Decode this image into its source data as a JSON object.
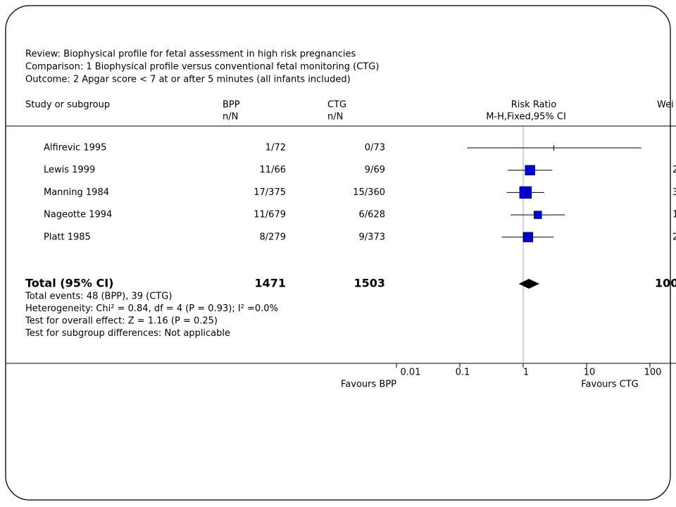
{
  "chart_data": {
    "type": "forest",
    "review": "Review:  Biophysical profile for fetal assessment in high risk pregnancies",
    "comparison": "Comparison:  1 Biophysical profile versus conventional fetal monitoring (CTG)",
    "outcome": "Outcome:  2 Apgar score < 7 at or after 5 minutes (all infants included)",
    "headers": {
      "study": "Study or subgroup",
      "bpp": "BPP",
      "bpp_sub": "n/N",
      "ctg": "CTG",
      "ctg_sub": "n/N",
      "rr": "Risk Ratio",
      "rr_sub": "M-H,Fixed,95% CI",
      "weight": "Wei"
    },
    "studies": [
      {
        "name": "Alfirevic 1995",
        "bpp": "1/72",
        "ctg": "0/73",
        "rr": 3.04,
        "lo": 0.13,
        "hi": 73,
        "weight": null
      },
      {
        "name": "Lewis 1999",
        "bpp": "11/66",
        "ctg": "9/69",
        "rr": 1.28,
        "lo": 0.57,
        "hi": 2.88,
        "weight": 2
      },
      {
        "name": "Manning 1984",
        "bpp": "17/375",
        "ctg": "15/360",
        "rr": 1.09,
        "lo": 0.55,
        "hi": 2.15,
        "weight": 3
      },
      {
        "name": "Nageotte 1994",
        "bpp": "11/679",
        "ctg": "6/628",
        "rr": 1.7,
        "lo": 0.63,
        "hi": 4.56,
        "weight": 1
      },
      {
        "name": "Platt 1985",
        "bpp": "8/279",
        "ctg": "9/373",
        "rr": 1.19,
        "lo": 0.46,
        "hi": 3.05,
        "weight": 2
      }
    ],
    "total": {
      "name": "Total (95% CI)",
      "bpp": 1471,
      "ctg": 1503,
      "rr": 1.23,
      "lo": 0.85,
      "hi": 1.8,
      "weight": 100
    },
    "notes": [
      "Total events: 48 (BPP), 39 (CTG)",
      "Heterogeneity: Chi² = 0.84, df = 4 (P = 0.93); I² =0.0%",
      "Test for overall effect: Z = 1.16 (P = 0.25)",
      "Test for subgroup differences: Not applicable"
    ],
    "xlim": [
      0.01,
      100
    ],
    "xticks": [
      0.01,
      0.1,
      1,
      10,
      100
    ],
    "log_x": true,
    "favours_left": "Favours BPP",
    "favours_right": "Favours CTG",
    "color": "#0000cc"
  }
}
